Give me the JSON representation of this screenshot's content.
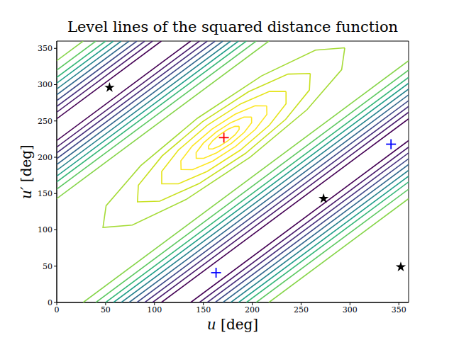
{
  "chart_data": {
    "type": "contour",
    "title": "Level lines of the squared distance function",
    "x_label": "u [deg]",
    "y_label": "u′ [deg]",
    "xlim": [
      0,
      360
    ],
    "ylim": [
      0,
      360
    ],
    "xticks": [
      0,
      50,
      100,
      150,
      200,
      250,
      300,
      350
    ],
    "yticks": [
      0,
      50,
      100,
      150,
      200,
      250,
      300,
      350
    ],
    "grid": false,
    "level_lines": [
      {
        "color": "#440154",
        "x": [
          107,
          360
        ],
        "y": [
          0,
          253
        ]
      },
      {
        "color": "#481a6c",
        "x": [
          98,
          360
        ],
        "y": [
          0,
          262
        ]
      },
      {
        "color": "#472f7d",
        "x": [
          90,
          360
        ],
        "y": [
          0,
          270
        ]
      },
      {
        "color": "#3e4989",
        "x": [
          82,
          360
        ],
        "y": [
          0,
          278
        ]
      },
      {
        "color": "#31688e",
        "x": [
          74,
          360
        ],
        "y": [
          0,
          286
        ]
      },
      {
        "color": "#26828e",
        "x": [
          66,
          360
        ],
        "y": [
          0,
          294
        ]
      },
      {
        "color": "#1f9e89",
        "x": [
          58,
          360
        ],
        "y": [
          0,
          302
        ]
      },
      {
        "color": "#35b779",
        "x": [
          50,
          360
        ],
        "y": [
          0,
          310
        ]
      },
      {
        "color": "#5ec962",
        "x": [
          40,
          360
        ],
        "y": [
          0,
          320
        ]
      },
      {
        "color": "#86d549",
        "x": [
          27,
          360
        ],
        "y": [
          0,
          333
        ]
      },
      {
        "color": "#440154",
        "x": [
          137,
          360
        ],
        "y": [
          0,
          223
        ]
      },
      {
        "color": "#481a6c",
        "x": [
          146,
          360
        ],
        "y": [
          0,
          214
        ]
      },
      {
        "color": "#472f7d",
        "x": [
          154,
          360
        ],
        "y": [
          0,
          206
        ]
      },
      {
        "color": "#3e4989",
        "x": [
          162,
          360
        ],
        "y": [
          0,
          198
        ]
      },
      {
        "color": "#31688e",
        "x": [
          170,
          360
        ],
        "y": [
          0,
          190
        ]
      },
      {
        "color": "#26828e",
        "x": [
          178,
          360
        ],
        "y": [
          0,
          182
        ]
      },
      {
        "color": "#1f9e89",
        "x": [
          186,
          360
        ],
        "y": [
          0,
          174
        ]
      },
      {
        "color": "#35b779",
        "x": [
          194,
          360
        ],
        "y": [
          0,
          166
        ]
      },
      {
        "color": "#5ec962",
        "x": [
          204,
          360
        ],
        "y": [
          0,
          156
        ]
      },
      {
        "color": "#86d549",
        "x": [
          217,
          360
        ],
        "y": [
          0,
          143
        ]
      },
      {
        "color": "#440154",
        "x": [
          0,
          107
        ],
        "y": [
          253,
          360
        ]
      },
      {
        "color": "#481a6c",
        "x": [
          0,
          98
        ],
        "y": [
          262,
          360
        ]
      },
      {
        "color": "#472f7d",
        "x": [
          0,
          90
        ],
        "y": [
          270,
          360
        ]
      },
      {
        "color": "#3e4989",
        "x": [
          0,
          82
        ],
        "y": [
          278,
          360
        ]
      },
      {
        "color": "#31688e",
        "x": [
          0,
          74
        ],
        "y": [
          286,
          360
        ]
      },
      {
        "color": "#26828e",
        "x": [
          0,
          66
        ],
        "y": [
          294,
          360
        ]
      },
      {
        "color": "#1f9e89",
        "x": [
          0,
          58
        ],
        "y": [
          302,
          360
        ]
      },
      {
        "color": "#35b779",
        "x": [
          0,
          50
        ],
        "y": [
          310,
          360
        ]
      },
      {
        "color": "#5ec962",
        "x": [
          0,
          40
        ],
        "y": [
          320,
          360
        ]
      },
      {
        "color": "#86d549",
        "x": [
          0,
          27
        ],
        "y": [
          333,
          360
        ]
      },
      {
        "color": "#440154",
        "x": [
          0,
          137
        ],
        "y": [
          223,
          360
        ]
      },
      {
        "color": "#481a6c",
        "x": [
          0,
          146
        ],
        "y": [
          214,
          360
        ]
      },
      {
        "color": "#472f7d",
        "x": [
          0,
          154
        ],
        "y": [
          206,
          360
        ]
      },
      {
        "color": "#3e4989",
        "x": [
          0,
          162
        ],
        "y": [
          198,
          360
        ]
      },
      {
        "color": "#31688e",
        "x": [
          0,
          170
        ],
        "y": [
          190,
          360
        ]
      },
      {
        "color": "#26828e",
        "x": [
          0,
          178
        ],
        "y": [
          182,
          360
        ]
      },
      {
        "color": "#1f9e89",
        "x": [
          0,
          186
        ],
        "y": [
          174,
          360
        ]
      },
      {
        "color": "#35b779",
        "x": [
          0,
          194
        ],
        "y": [
          166,
          360
        ]
      },
      {
        "color": "#5ec962",
        "x": [
          0,
          204
        ],
        "y": [
          156,
          360
        ]
      },
      {
        "color": "#86d549",
        "x": [
          0,
          217
        ],
        "y": [
          143,
          360
        ]
      },
      {
        "color": "#a5db36",
        "x": [
          294.7,
          264.7,
          209.6,
          144.1,
          85.9,
          50.5,
          47.3,
          77.3,
          132.4,
          197.9,
          256.1,
          291.5,
          294.7
        ],
        "y": [
          350.7,
          347.5,
          312.1,
          253.9,
          188.4,
          133.3,
          103.3,
          106.5,
          141.9,
          200.1,
          265.6,
          320.7,
          350.7
        ]
      },
      {
        "color": "#c8e020",
        "x": [
          259.4,
          236.6,
          196.2,
          149.1,
          107.8,
          83.5,
          82.6,
          105.4,
          145.8,
          192.9,
          234.2,
          258.5,
          259.4
        ],
        "y": [
          315.4,
          314.5,
          290.2,
          248.9,
          201.8,
          161.4,
          138.6,
          139.5,
          163.8,
          205.1,
          252.2,
          292.6,
          315.4
        ]
      },
      {
        "color": "#e5e419",
        "x": [
          234.6,
          217.6,
          188.1,
          154.0,
          124.5,
          107.4,
          107.4,
          124.4,
          153.9,
          188.0,
          217.5,
          234.6,
          234.6
        ],
        "y": [
          290.6,
          290.6,
          273.5,
          244.0,
          209.9,
          180.4,
          163.4,
          163.4,
          180.5,
          210.0,
          244.1,
          273.6,
          290.6
        ]
      },
      {
        "color": "#fde725",
        "x": [
          214.8,
          203.0,
          182.5,
          159.0,
          138.7,
          127.0,
          127.2,
          139.0,
          159.5,
          183.0,
          203.3,
          215.0,
          214.8
        ],
        "y": [
          270.8,
          271.0,
          259.3,
          239.0,
          215.5,
          195.0,
          183.2,
          183.0,
          194.7,
          215.0,
          238.5,
          259.0,
          270.8
        ]
      },
      {
        "color": "#fde725",
        "x": [
          199.3,
          191.6,
          178.4,
          163.2,
          150.1,
          142.6,
          142.7,
          150.4,
          163.6,
          178.8,
          191.9,
          199.4,
          199.3
        ],
        "y": [
          255.3,
          255.4,
          247.9,
          234.8,
          219.6,
          206.4,
          198.7,
          198.6,
          206.1,
          219.2,
          234.4,
          247.6,
          255.3
        ]
      },
      {
        "color": "#fde725",
        "x": [
          186.6,
          182.3,
          175.1,
          166.8,
          159.6,
          155.4,
          155.4,
          159.6,
          166.9,
          175.2,
          182.5,
          186.6,
          186.6
        ],
        "y": [
          242.6,
          242.6,
          238.5,
          231.2,
          222.9,
          215.7,
          211.4,
          211.4,
          215.6,
          222.8,
          231.1,
          238.4,
          242.6
        ]
      }
    ],
    "markers": [
      {
        "marker": "star",
        "color": "#000000",
        "x": [
          54,
          273,
          352
        ],
        "y": [
          296,
          143,
          49
        ]
      },
      {
        "marker": "plus",
        "color": "#0000ff",
        "x": [
          163,
          342
        ],
        "y": [
          41,
          218
        ]
      },
      {
        "marker": "plus",
        "color": "#ff0000",
        "x": [
          171
        ],
        "y": [
          227
        ]
      }
    ]
  }
}
